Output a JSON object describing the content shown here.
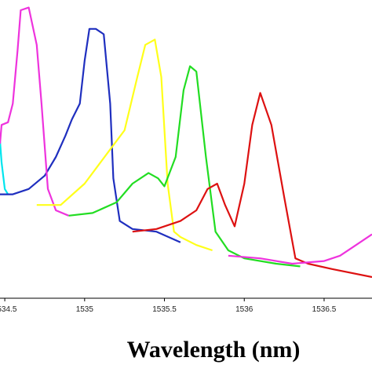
{
  "chart_data": {
    "type": "line",
    "title": "",
    "xlabel": "Wavelength (nm)",
    "ylabel": "",
    "xlim": [
      1534.47,
      1536.8
    ],
    "ylim": [
      0,
      1
    ],
    "grid": false,
    "legend": "none",
    "x_ticks": [
      {
        "value": 1534.5,
        "label": "1534.5"
      },
      {
        "value": 1535,
        "label": "1535"
      },
      {
        "value": 1535.5,
        "label": "1535.5"
      },
      {
        "value": 1536,
        "label": "1536"
      },
      {
        "value": 1536.5,
        "label": "1536.5"
      }
    ],
    "series": [
      {
        "color": "#00e5ee",
        "x": [
          1534.47,
          1534.48,
          1534.5,
          1534.52
        ],
        "y": [
          0.56,
          0.48,
          0.38,
          0.36
        ]
      },
      {
        "color": "#1f2fbf",
        "x": [
          1534.47,
          1534.55,
          1534.65,
          1534.75,
          1534.82,
          1534.88,
          1534.92,
          1534.97,
          1535.0,
          1535.03,
          1535.07,
          1535.12,
          1535.16,
          1535.18,
          1535.22,
          1535.3,
          1535.45,
          1535.6
        ],
        "y": [
          0.36,
          0.36,
          0.38,
          0.43,
          0.5,
          0.58,
          0.64,
          0.7,
          0.86,
          0.98,
          0.98,
          0.96,
          0.7,
          0.42,
          0.26,
          0.23,
          0.22,
          0.18
        ]
      },
      {
        "color": "#ee33dd",
        "x": [
          1534.47,
          1534.48,
          1534.52,
          1534.55,
          1534.58,
          1534.6,
          1534.65,
          1534.7,
          1534.73,
          1534.77,
          1534.82,
          1534.9
        ],
        "y": [
          0.55,
          0.62,
          0.63,
          0.7,
          0.9,
          1.05,
          1.06,
          0.92,
          0.7,
          0.38,
          0.3,
          0.28
        ]
      },
      {
        "color": "#ffff1a",
        "x": [
          1534.7,
          1534.85,
          1535.0,
          1535.15,
          1535.25,
          1535.33,
          1535.38,
          1535.44,
          1535.48,
          1535.52,
          1535.56,
          1535.6,
          1535.7,
          1535.8
        ],
        "y": [
          0.32,
          0.32,
          0.4,
          0.52,
          0.6,
          0.8,
          0.92,
          0.94,
          0.8,
          0.4,
          0.22,
          0.2,
          0.17,
          0.15
        ]
      },
      {
        "color": "#22dd22",
        "x": [
          1534.9,
          1535.05,
          1535.2,
          1535.3,
          1535.4,
          1535.46,
          1535.5,
          1535.57,
          1535.62,
          1535.66,
          1535.7,
          1535.76,
          1535.82,
          1535.9,
          1536.0,
          1536.2,
          1536.35
        ],
        "y": [
          0.28,
          0.29,
          0.33,
          0.4,
          0.44,
          0.42,
          0.39,
          0.5,
          0.75,
          0.84,
          0.82,
          0.5,
          0.22,
          0.15,
          0.12,
          0.1,
          0.09
        ]
      },
      {
        "color": "#dd1111",
        "x": [
          1535.3,
          1535.45,
          1535.6,
          1535.7,
          1535.77,
          1535.83,
          1535.88,
          1535.94,
          1536.0,
          1536.05,
          1536.1,
          1536.17,
          1536.25,
          1536.32,
          1536.4,
          1536.55,
          1536.8
        ],
        "y": [
          0.22,
          0.23,
          0.26,
          0.3,
          0.38,
          0.4,
          0.32,
          0.24,
          0.4,
          0.62,
          0.74,
          0.62,
          0.35,
          0.12,
          0.1,
          0.08,
          0.05
        ]
      },
      {
        "color": "#ee33dd",
        "x": [
          1535.9,
          1536.1,
          1536.3,
          1536.5,
          1536.6,
          1536.7,
          1536.8
        ],
        "y": [
          0.13,
          0.12,
          0.1,
          0.11,
          0.13,
          0.17,
          0.21
        ]
      }
    ]
  }
}
